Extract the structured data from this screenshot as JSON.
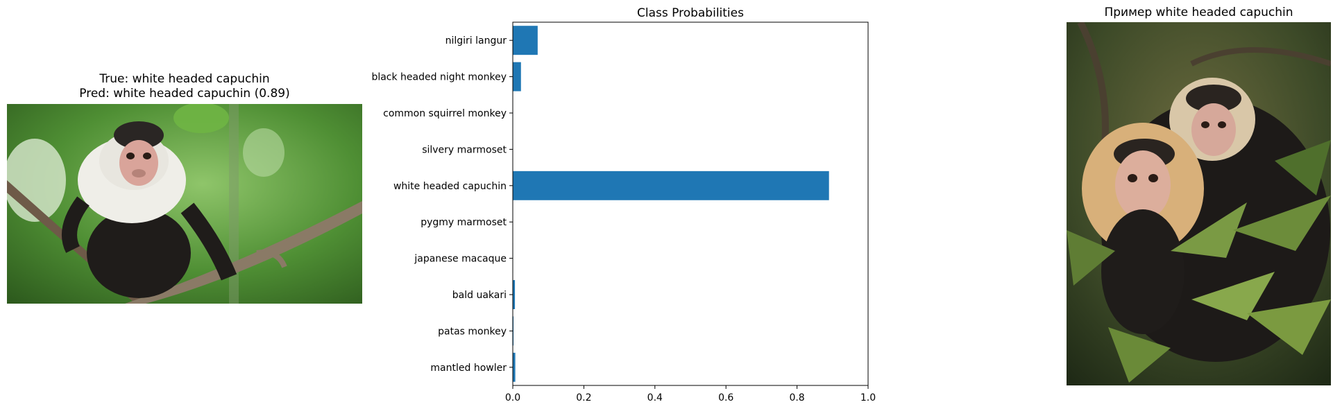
{
  "left_panel": {
    "title_line1": "True: white headed capuchin",
    "title_line2": "Pred: white headed capuchin (0.89)",
    "image": "photo of a white headed capuchin sitting on a branch"
  },
  "right_panel": {
    "title": "Пример white headed capuchin",
    "image": "photo of two white headed capuchins among leaves"
  },
  "colors": {
    "bar": "#1f77b4",
    "axis": "#000000"
  },
  "chart_data": {
    "type": "bar",
    "orientation": "horizontal",
    "title": "Class Probabilities",
    "xlabel": "",
    "ylabel": "",
    "categories": [
      "nilgiri langur",
      "black headed night monkey",
      "common squirrel monkey",
      "silvery marmoset",
      "white headed capuchin",
      "pygmy marmoset",
      "japanese macaque",
      "bald uakari",
      "patas monkey",
      "mantled howler"
    ],
    "values": [
      0.07,
      0.023,
      0.001,
      0.0005,
      0.89,
      0.0005,
      0.001,
      0.006,
      0.002,
      0.007
    ],
    "xlim": [
      0,
      1
    ],
    "xticks": [
      "0.0",
      "0.2",
      "0.4",
      "0.6",
      "0.8",
      "1.0"
    ],
    "grid": false
  }
}
